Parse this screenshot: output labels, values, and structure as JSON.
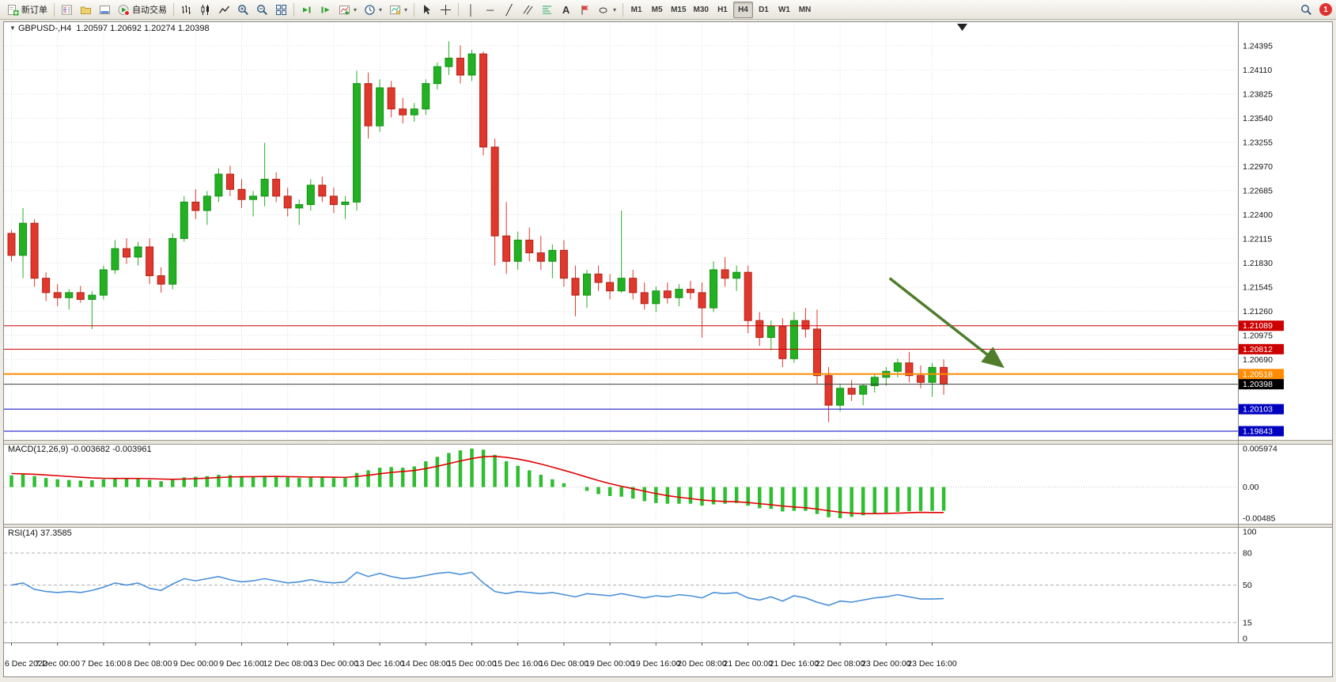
{
  "toolbar": {
    "new_order": "新订单",
    "autotrading": "自动交易",
    "timeframes": [
      "M1",
      "M5",
      "M15",
      "M30",
      "H1",
      "H4",
      "D1",
      "W1",
      "MN"
    ],
    "active_timeframe": "H4",
    "notification_count": "1"
  },
  "chart": {
    "symbol_period": "GBPUSD-,H4",
    "ohlc_text": "1.20597 1.20692 1.20274 1.20398",
    "macd_label": "MACD(12,26,9)",
    "macd_values": "-0.003682 -0.003961",
    "rsi_label": "RSI(14)",
    "rsi_value": "37.3585"
  },
  "chart_data": [
    {
      "type": "candlestick",
      "symbol": "GBPUSD-",
      "timeframe": "H4",
      "last_ohlc": {
        "open": 1.20597,
        "high": 1.20692,
        "low": 1.20274,
        "close": 1.20398
      },
      "up_color": "#23B123",
      "down_color": "#E0382C",
      "x_label_step": 4,
      "x_labels": [
        "6 Dec 2022",
        "7 Dec 00:00",
        "7 Dec 16:00",
        "8 Dec 08:00",
        "9 Dec 00:00",
        "9 Dec 16:00",
        "12 Dec 08:00",
        "13 Dec 00:00",
        "13 Dec 16:00",
        "14 Dec 08:00",
        "15 Dec 00:00",
        "15 Dec 16:00",
        "16 Dec 08:00",
        "19 Dec 00:00",
        "19 Dec 16:00",
        "20 Dec 08:00",
        "21 Dec 00:00",
        "21 Dec 16:00",
        "22 Dec 08:00",
        "23 Dec 00:00",
        "23 Dec 16:00"
      ],
      "y_axis_ticks": [
        1.24395,
        1.2411,
        1.23825,
        1.2354,
        1.23255,
        1.2297,
        1.22685,
        1.224,
        1.22115,
        1.2183,
        1.21545,
        1.2126,
        1.20975,
        1.2069
      ],
      "candles": [
        [
          1.2218,
          1.2222,
          1.2185,
          1.2192
        ],
        [
          1.2192,
          1.2248,
          1.2165,
          1.223
        ],
        [
          1.223,
          1.2235,
          1.2155,
          1.2165
        ],
        [
          1.2165,
          1.2172,
          1.2138,
          1.2148
        ],
        [
          1.2148,
          1.2158,
          1.2132,
          1.2142
        ],
        [
          1.2142,
          1.2152,
          1.2128,
          1.2148
        ],
        [
          1.2148,
          1.2156,
          1.2136,
          1.214
        ],
        [
          1.214,
          1.215,
          1.2105,
          1.2145
        ],
        [
          1.2145,
          1.218,
          1.214,
          1.2175
        ],
        [
          1.2175,
          1.221,
          1.217,
          1.22
        ],
        [
          1.22,
          1.2212,
          1.2182,
          1.219
        ],
        [
          1.219,
          1.2208,
          1.218,
          1.2202
        ],
        [
          1.2202,
          1.2212,
          1.2158,
          1.2168
        ],
        [
          1.2168,
          1.2178,
          1.2148,
          1.2158
        ],
        [
          1.2158,
          1.2218,
          1.2152,
          1.2212
        ],
        [
          1.2212,
          1.2262,
          1.2208,
          1.2255
        ],
        [
          1.2255,
          1.227,
          1.2235,
          1.2245
        ],
        [
          1.2245,
          1.2268,
          1.2228,
          1.2262
        ],
        [
          1.2262,
          1.2295,
          1.2255,
          1.2288
        ],
        [
          1.2288,
          1.2298,
          1.2262,
          1.227
        ],
        [
          1.227,
          1.2282,
          1.2248,
          1.2258
        ],
        [
          1.2258,
          1.2268,
          1.2238,
          1.2262
        ],
        [
          1.2262,
          1.2325,
          1.225,
          1.2282
        ],
        [
          1.2282,
          1.229,
          1.2255,
          1.2262
        ],
        [
          1.2262,
          1.2272,
          1.2238,
          1.2248
        ],
        [
          1.2248,
          1.2258,
          1.2228,
          1.2252
        ],
        [
          1.2252,
          1.2282,
          1.2245,
          1.2275
        ],
        [
          1.2275,
          1.2285,
          1.2255,
          1.2262
        ],
        [
          1.2262,
          1.2272,
          1.2242,
          1.2252
        ],
        [
          1.2252,
          1.2262,
          1.2235,
          1.2255
        ],
        [
          1.2255,
          1.241,
          1.2245,
          1.2395
        ],
        [
          1.2395,
          1.2408,
          1.233,
          1.2345
        ],
        [
          1.2345,
          1.24,
          1.2338,
          1.239
        ],
        [
          1.239,
          1.2398,
          1.2355,
          1.2365
        ],
        [
          1.2365,
          1.2378,
          1.2348,
          1.2358
        ],
        [
          1.2358,
          1.2372,
          1.235,
          1.2365
        ],
        [
          1.2365,
          1.24,
          1.2358,
          1.2395
        ],
        [
          1.2395,
          1.242,
          1.2388,
          1.2415
        ],
        [
          1.2415,
          1.2445,
          1.2405,
          1.2425
        ],
        [
          1.2425,
          1.244,
          1.2395,
          1.2405
        ],
        [
          1.2405,
          1.2435,
          1.2398,
          1.243
        ],
        [
          1.243,
          1.2433,
          1.231,
          1.232
        ],
        [
          1.232,
          1.233,
          1.218,
          1.2215
        ],
        [
          1.2215,
          1.2255,
          1.217,
          1.2185
        ],
        [
          1.2185,
          1.222,
          1.2175,
          1.221
        ],
        [
          1.221,
          1.2225,
          1.2185,
          1.2195
        ],
        [
          1.2195,
          1.2215,
          1.2175,
          1.2185
        ],
        [
          1.2185,
          1.2205,
          1.2165,
          1.2198
        ],
        [
          1.2198,
          1.221,
          1.2155,
          1.2165
        ],
        [
          1.2165,
          1.218,
          1.212,
          1.2145
        ],
        [
          1.2145,
          1.2175,
          1.213,
          1.217
        ],
        [
          1.217,
          1.218,
          1.215,
          1.216
        ],
        [
          1.216,
          1.217,
          1.214,
          1.215
        ],
        [
          1.215,
          1.2245,
          1.2148,
          1.2165
        ],
        [
          1.2165,
          1.2175,
          1.214,
          1.2148
        ],
        [
          1.2148,
          1.216,
          1.2128,
          1.2135
        ],
        [
          1.2135,
          1.2155,
          1.2125,
          1.215
        ],
        [
          1.215,
          1.216,
          1.2135,
          1.2142
        ],
        [
          1.2142,
          1.2158,
          1.2132,
          1.2152
        ],
        [
          1.2152,
          1.2162,
          1.214,
          1.2148
        ],
        [
          1.2148,
          1.216,
          1.2095,
          1.213
        ],
        [
          1.213,
          1.2185,
          1.2125,
          1.2175
        ],
        [
          1.2175,
          1.219,
          1.2155,
          1.2165
        ],
        [
          1.2165,
          1.218,
          1.215,
          1.2172
        ],
        [
          1.2172,
          1.218,
          1.21,
          1.2115
        ],
        [
          1.2115,
          1.2125,
          1.2085,
          1.2095
        ],
        [
          1.2095,
          1.2115,
          1.208,
          1.2108
        ],
        [
          1.2108,
          1.2118,
          1.206,
          1.207
        ],
        [
          1.207,
          1.2125,
          1.2065,
          1.2115
        ],
        [
          1.2115,
          1.213,
          1.2095,
          1.2105
        ],
        [
          1.2105,
          1.2128,
          1.204,
          1.205
        ],
        [
          1.205,
          1.206,
          1.1995,
          1.2015
        ],
        [
          1.2015,
          1.204,
          1.2008,
          1.2035
        ],
        [
          1.2035,
          1.2045,
          1.202,
          1.2028
        ],
        [
          1.2028,
          1.204,
          1.2015,
          1.2038
        ],
        [
          1.2038,
          1.2052,
          1.203,
          1.2048
        ],
        [
          1.2048,
          1.206,
          1.2038,
          1.2055
        ],
        [
          1.2055,
          1.207,
          1.2048,
          1.2065
        ],
        [
          1.2065,
          1.2078,
          1.2042,
          1.205
        ],
        [
          1.205,
          1.2062,
          1.2035,
          1.2042
        ],
        [
          1.2042,
          1.2065,
          1.2025,
          1.20597
        ],
        [
          1.20597,
          1.20692,
          1.20274,
          1.20398
        ]
      ],
      "hlines": [
        {
          "price": 1.21089,
          "color": "#CC0000",
          "badge": "#CC0000",
          "name": "resistance-line-1"
        },
        {
          "price": 1.20812,
          "color": "#CC0000",
          "badge": "#CC0000",
          "name": "resistance-line-2"
        },
        {
          "price": 1.20518,
          "color": "#FF8C00",
          "badge": "#FF8C00",
          "width": 2,
          "name": "pivot-line"
        },
        {
          "price": 1.20398,
          "color": "#3C3C3C",
          "badge": "#000000",
          "name": "current-price-line"
        },
        {
          "price": 1.20103,
          "color": "#0000C0",
          "badge": "#0000C0",
          "name": "support-line-1"
        },
        {
          "price": 1.19843,
          "color": "#0000C0",
          "badge": "#0000C0",
          "name": "support-line-2"
        }
      ],
      "arrow": {
        "from_index": 76.3,
        "from_price": 1.2165,
        "to_index": 85.8,
        "to_price": 1.2064,
        "color": "#4F7D2C"
      }
    },
    {
      "type": "bar",
      "name": "MACD(12,26,9)",
      "current_main": -0.003682,
      "current_signal": -0.003961,
      "color": "#2FBE2F",
      "signal_color": "#E00000",
      "y_max": 0.005974,
      "y_min": -0.00485,
      "y_ticks": [
        0.005974,
        0,
        -0.00485
      ],
      "values": [
        0.0018,
        0.00195,
        0.0017,
        0.0014,
        0.0012,
        0.0011,
        0.001,
        0.00105,
        0.0012,
        0.0014,
        0.00135,
        0.0013,
        0.0011,
        0.0009,
        0.0011,
        0.0015,
        0.0016,
        0.0017,
        0.0019,
        0.00185,
        0.0017,
        0.0016,
        0.00175,
        0.00165,
        0.0015,
        0.0014,
        0.0015,
        0.0015,
        0.0014,
        0.0014,
        0.0022,
        0.0026,
        0.003,
        0.0031,
        0.003,
        0.0032,
        0.004,
        0.0047,
        0.0053,
        0.0057,
        0.00597,
        0.0058,
        0.005,
        0.004,
        0.0033,
        0.0026,
        0.0019,
        0.0012,
        0.0006,
        0.0,
        -0.0006,
        -0.0011,
        -0.0014,
        -0.0015,
        -0.0018,
        -0.0022,
        -0.0025,
        -0.0026,
        -0.0026,
        -0.0026,
        -0.0029,
        -0.0027,
        -0.0026,
        -0.0025,
        -0.0029,
        -0.0033,
        -0.0034,
        -0.0038,
        -0.0037,
        -0.0037,
        -0.0042,
        -0.0047,
        -0.00485,
        -0.00465,
        -0.0044,
        -0.0042,
        -0.004,
        -0.00385,
        -0.00375,
        -0.00372,
        -0.0037,
        -0.003682
      ],
      "signal": [
        0.0021,
        0.00205,
        0.00198,
        0.00188,
        0.00176,
        0.00164,
        0.00152,
        0.00142,
        0.00136,
        0.00134,
        0.00134,
        0.00133,
        0.0013,
        0.00124,
        0.0012,
        0.00124,
        0.0013,
        0.00138,
        0.00148,
        0.00156,
        0.0016,
        0.00161,
        0.00163,
        0.00164,
        0.00162,
        0.00158,
        0.00156,
        0.00155,
        0.00152,
        0.0015,
        0.00164,
        0.00183,
        0.00206,
        0.00227,
        0.00242,
        0.00257,
        0.00286,
        0.00323,
        0.00364,
        0.00405,
        0.00443,
        0.00471,
        0.00477,
        0.00461,
        0.00435,
        0.004,
        0.00358,
        0.0031,
        0.0026,
        0.00208,
        0.00154,
        0.00101,
        0.00053,
        0.00012,
        -0.00026,
        -0.00065,
        -0.00102,
        -0.00134,
        -0.00159,
        -0.00179,
        -0.00201,
        -0.00215,
        -0.00224,
        -0.00229,
        -0.00241,
        -0.00259,
        -0.00275,
        -0.00296,
        -0.00311,
        -0.00323,
        -0.00342,
        -0.00368,
        -0.00391,
        -0.00406,
        -0.00413,
        -0.00414,
        -0.00411,
        -0.00406,
        -0.004,
        -0.00394,
        -0.00396,
        -0.003961
      ]
    },
    {
      "type": "line",
      "name": "RSI(14)",
      "current_value": 37.3585,
      "color": "#4A90D9",
      "levels": [
        80,
        50,
        15
      ],
      "y_ticks": [
        100,
        80,
        50,
        15,
        0
      ],
      "y_range": [
        0,
        100
      ],
      "values": [
        50,
        52,
        46,
        44,
        43,
        44,
        43,
        45,
        48,
        52,
        50,
        52,
        47,
        45,
        51,
        56,
        54,
        56,
        58,
        55,
        53,
        54,
        56,
        54,
        52,
        53,
        55,
        53,
        52,
        53,
        62,
        58,
        61,
        58,
        56,
        57,
        59,
        61,
        62,
        60,
        62,
        52,
        44,
        42,
        44,
        43,
        42,
        43,
        41,
        39,
        42,
        41,
        40,
        42,
        40,
        38,
        40,
        39,
        41,
        40,
        38,
        43,
        42,
        43,
        38,
        36,
        39,
        35,
        40,
        38,
        34,
        31,
        35,
        34,
        36,
        38,
        39,
        41,
        39,
        37,
        37,
        37.3585
      ]
    }
  ]
}
